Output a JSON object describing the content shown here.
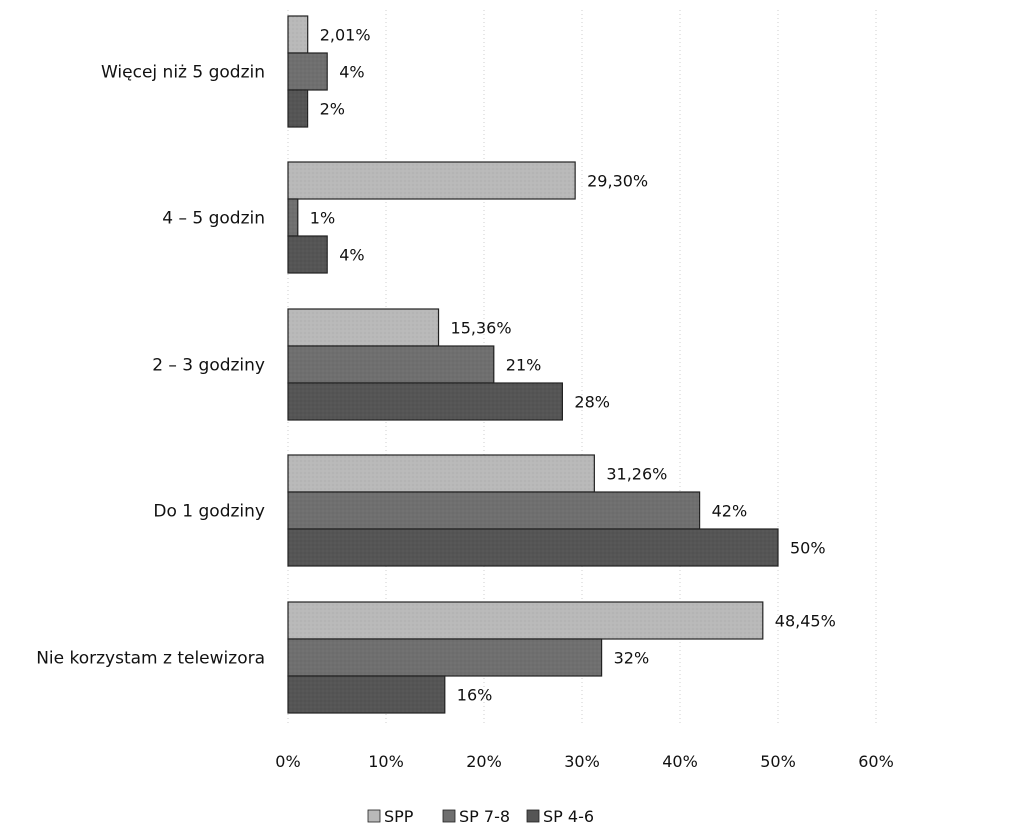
{
  "chart_data": {
    "type": "bar",
    "orientation": "horizontal",
    "title": "",
    "xlabel": "",
    "ylabel": "",
    "categories": [
      "Więcej niż 5 godzin",
      "4 – 5 godzin",
      "2 – 3 godziny",
      "Do 1 godziny",
      "Nie korzystam z telewizora"
    ],
    "series": [
      {
        "name": "SPP",
        "color": "#b9b9b9",
        "values": [
          2.01,
          29.3,
          15.36,
          31.26,
          48.45
        ],
        "labels": [
          "2,01%",
          "29,30%",
          "15,36%",
          "31,26%",
          "48,45%"
        ]
      },
      {
        "name": "SP 7-8",
        "color": "#6f6f6f",
        "values": [
          4,
          1,
          21,
          42,
          32
        ],
        "labels": [
          "4%",
          "1%",
          "21%",
          "42%",
          "32%"
        ]
      },
      {
        "name": "SP 4-6",
        "color": "#555555",
        "values": [
          2,
          4,
          28,
          50,
          16
        ],
        "labels": [
          "2%",
          "4%",
          "28%",
          "50%",
          "16%"
        ]
      }
    ],
    "x_ticks": [
      "0%",
      "10%",
      "20%",
      "30%",
      "40%",
      "50%",
      "60%"
    ],
    "xlim": [
      0,
      60
    ],
    "grid": true,
    "legend_position": "bottom"
  }
}
